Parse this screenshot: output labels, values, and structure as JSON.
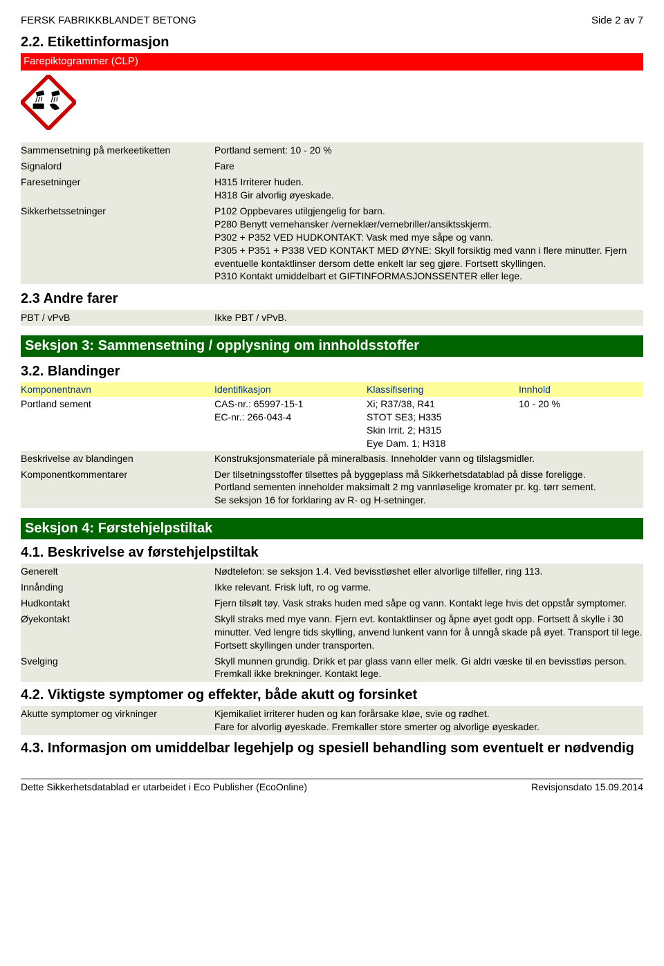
{
  "header": {
    "title": "FERSK FABRIKKBLANDET BETONG",
    "page": "Side 2 av 7"
  },
  "s22": {
    "num": "2.2. Etikettinformasjon",
    "redbar": "Farepiktogrammer (CLP)",
    "rows": {
      "sammen_k": "Sammensetning på merkeetiketten",
      "sammen_v": "Portland sement: 10 - 20 %",
      "signal_k": "Signalord",
      "signal_v": "Fare",
      "fare_k": "Faresetninger",
      "fare_v": "H315 Irriterer huden.\nH318 Gir alvorlig øyeskade.",
      "sikk_k": "Sikkerhetssetninger",
      "sikk_v": "P102 Oppbevares utilgjengelig for barn.\nP280 Benytt vernehansker /verneklær/vernebriller/ansiktsskjerm.\nP302 + P352 VED HUDKONTAKT: Vask med mye såpe og vann.\nP305 + P351 + P338 VED KONTAKT MED ØYNE: Skyll forsiktig med vann i flere minutter. Fjern eventuelle kontaktlinser dersom dette enkelt lar seg gjøre. Fortsett skyllingen.\nP310 Kontakt umiddelbart et GIFTINFORMASJONSSENTER eller lege."
    }
  },
  "s23": {
    "num": "2.3 Andre farer",
    "pbt_k": "PBT / vPvB",
    "pbt_v": "Ikke PBT / vPvB."
  },
  "s3": {
    "bar": "Seksjon 3: Sammensetning / opplysning om innholdsstoffer",
    "num": "3.2. Blandinger",
    "head": {
      "name": "Komponentnavn",
      "id": "Identifikasjon",
      "cls": "Klassifisering",
      "inn": "Innhold"
    },
    "row1": {
      "name": "Portland sement",
      "id": "CAS-nr.: 65997-15-1\nEC-nr.: 266-043-4",
      "cls": "Xi; R37/38, R41\nSTOT SE3; H335\nSkin Irrit. 2; H315\nEye Dam. 1; H318",
      "inn": "10 - 20 %"
    },
    "besk_k": "Beskrivelse av blandingen",
    "besk_v": "Konstruksjonsmateriale på mineralbasis. Inneholder vann og tilslagsmidler.",
    "komp_k": "Komponentkommentarer",
    "komp_v": "Der tilsetningsstoffer tilsettes på byggeplass må Sikkerhetsdatablad på disse foreligge.\nPortland sementen inneholder maksimalt 2 mg vannløselige kromater pr. kg. tørr sement.\nSe seksjon 16 for forklaring av R- og H-setninger."
  },
  "s4": {
    "bar": "Seksjon 4: Førstehjelpstiltak",
    "s41": "4.1. Beskrivelse av førstehjelpstiltak",
    "gen_k": "Generelt",
    "gen_v": "Nødtelefon: se seksjon 1.4. Ved bevisstløshet eller alvorlige tilfeller, ring 113.",
    "inn_k": "Innånding",
    "inn_v": "Ikke relevant. Frisk luft, ro og varme.",
    "hud_k": "Hudkontakt",
    "hud_v": "Fjern tilsølt tøy. Vask straks huden med såpe og vann. Kontakt lege hvis det oppstår symptomer.",
    "oye_k": "Øyekontakt",
    "oye_v": "Skyll straks med mye vann. Fjern evt. kontaktlinser og åpne øyet godt opp. Fortsett å skylle i 30 minutter. Ved lengre tids skylling, anvend lunkent vann for å unngå skade på øyet. Transport til lege. Fortsett skyllingen under transporten.",
    "svg_k": "Svelging",
    "svg_v": "Skyll munnen grundig. Drikk et par glass vann eller melk. Gi aldri væske til en bevisstløs person. Fremkall ikke brekninger. Kontakt lege.",
    "s42": "4.2. Viktigste symptomer og effekter, både akutt og forsinket",
    "akut_k": "Akutte symptomer og virkninger",
    "akut_v": "Kjemikaliet irriterer huden og kan forårsake kløe, svie og rødhet.\nFare for alvorlig øyeskade. Fremkaller store smerter og alvorlige øyeskader.",
    "s43": "4.3. Informasjon om umiddelbar legehjelp og spesiell behandling som eventuelt er nødvendig"
  },
  "footer": {
    "left": "Dette Sikkerhetsdatablad er utarbeidet i Eco Publisher (EcoOnline)",
    "right": "Revisjonsdato 15.09.2014"
  }
}
